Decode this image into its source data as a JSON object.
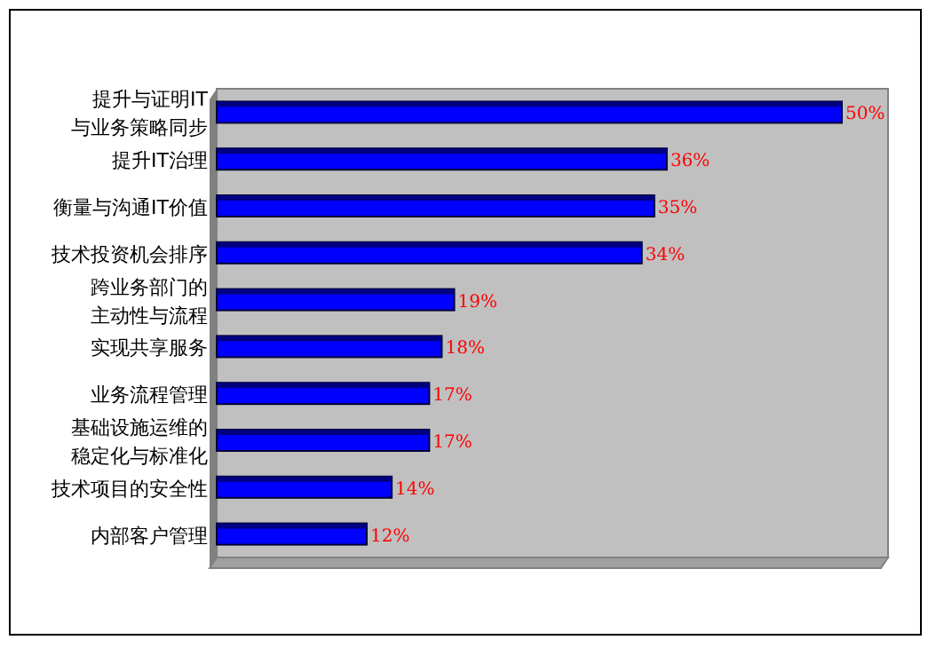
{
  "chart_data": {
    "type": "bar",
    "orientation": "horizontal",
    "categories": [
      "提升与证明IT与业务策略同步",
      "提升IT治理",
      "衡量与沟通IT价值",
      "技术投资机会排序",
      "跨业务部门的主动性与流程",
      "实现共享服务",
      "业务流程管理",
      "基础设施运维的稳定化与标准化",
      "技术项目的安全性",
      "内部客户管理"
    ],
    "values": [
      50,
      36,
      35,
      34,
      19,
      18,
      17,
      17,
      14,
      12
    ],
    "value_labels": [
      "50%",
      "36%",
      "35%",
      "34%",
      "19%",
      "18%",
      "17%",
      "17%",
      "14%",
      "12%"
    ],
    "color": "#0000ff"
  }
}
